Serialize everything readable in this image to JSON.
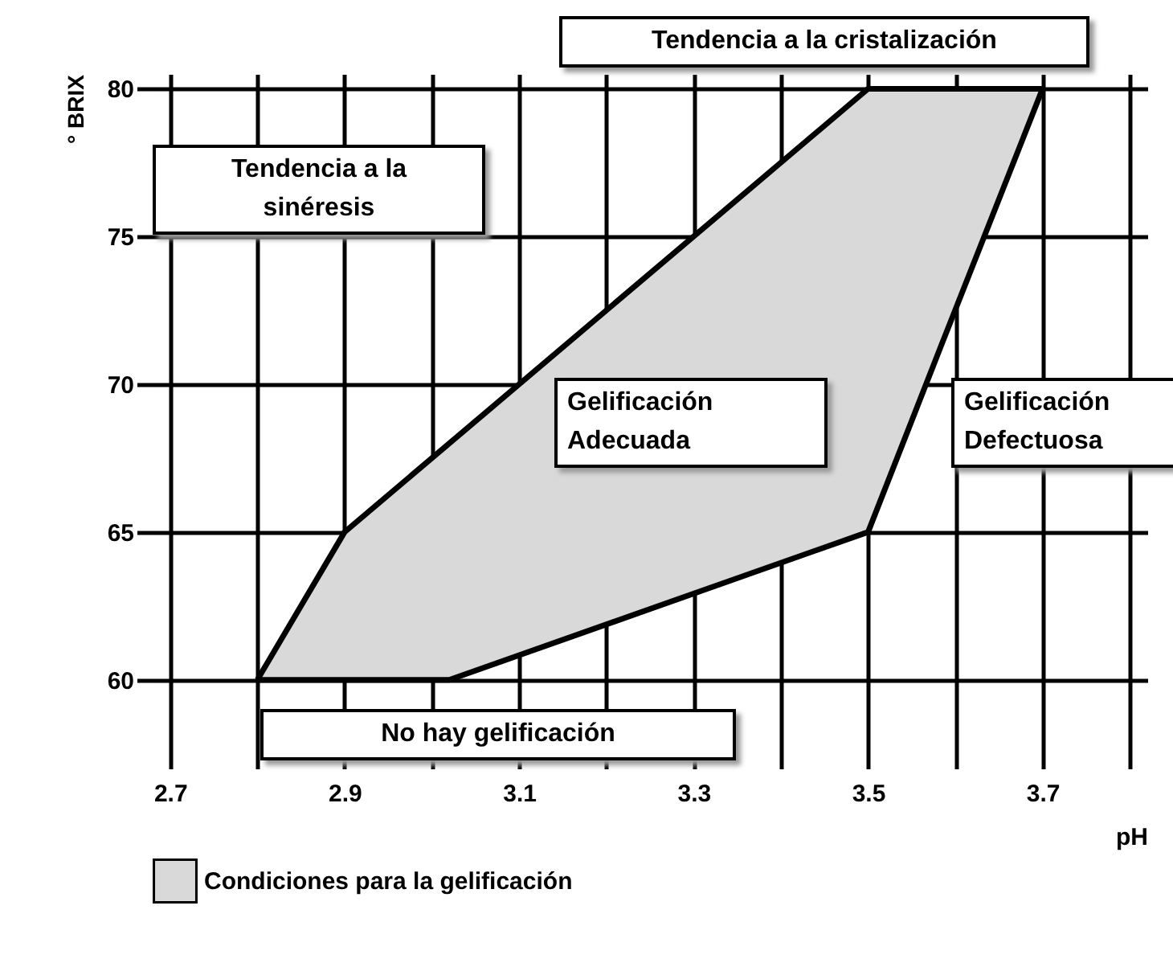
{
  "chart_data": {
    "type": "area",
    "xlabel": "pH",
    "ylabel": "° BRIX",
    "xlim": [
      2.68,
      3.82
    ],
    "ylim": [
      57,
      80.5
    ],
    "xticks": [
      2.7,
      {
        "value": 2.8,
        "label": null
      },
      2.9,
      {
        "value": 3.0,
        "label": null
      },
      3.1,
      {
        "value": 3.2,
        "label": null
      },
      3.3,
      {
        "value": 3.4,
        "label": null
      },
      3.5,
      {
        "value": 3.6,
        "label": null
      },
      3.7,
      {
        "value": 3.8,
        "label": null
      }
    ],
    "yticks": [
      60,
      65,
      70,
      75,
      80
    ],
    "grid": true,
    "legend": "bottom",
    "series": [
      {
        "name": "Condiciones para la gelificación",
        "color": "#d9d9d9",
        "x": [
          2.8,
          2.9,
          3.5,
          3.7,
          3.585,
          3.5,
          3.02,
          2.8
        ],
        "values": [
          60,
          65,
          80,
          80,
          71.4,
          65,
          60,
          60
        ]
      }
    ],
    "annotations": [
      "Tendencia a la cristalización",
      "Tendencia a la\nsinéresis",
      "Gelificación\nAdecuada",
      "Gelificación\nDefectuosa",
      "No hay gelificación"
    ]
  }
}
